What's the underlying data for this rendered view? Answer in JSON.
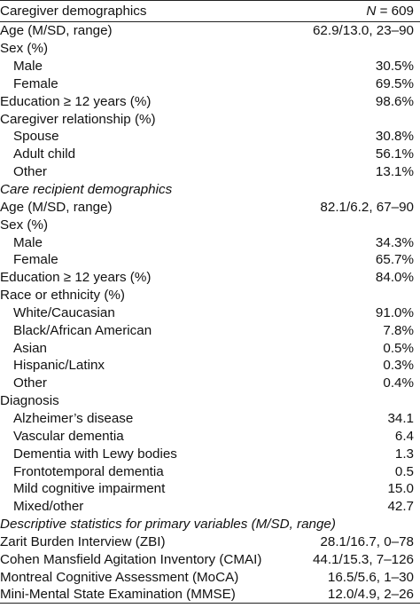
{
  "header": {
    "label": "Caregiver demographics",
    "n_label": "N",
    "n_value": " = 609"
  },
  "rows": [
    {
      "label": "Age (M/SD, range)",
      "value": "62.9/13.0, 23–90",
      "kind": "normal"
    },
    {
      "label": "Sex (%)",
      "value": "",
      "kind": "normal"
    },
    {
      "label": "Male",
      "value": "30.5%",
      "kind": "indent"
    },
    {
      "label": "Female",
      "value": "69.5%",
      "kind": "indent"
    },
    {
      "label": "Education ≥ 12 years (%)",
      "value": "98.6%",
      "kind": "normal"
    },
    {
      "label": "Caregiver relationship (%)",
      "value": "",
      "kind": "normal"
    },
    {
      "label": "Spouse",
      "value": "30.8%",
      "kind": "indent"
    },
    {
      "label": "Adult child",
      "value": "56.1%",
      "kind": "indent"
    },
    {
      "label": "Other",
      "value": "13.1%",
      "kind": "indent"
    },
    {
      "label": "Care recipient demographics",
      "value": "",
      "kind": "section"
    },
    {
      "label": "Age (M/SD, range)",
      "value": "82.1/6.2, 67–90",
      "kind": "normal"
    },
    {
      "label": "Sex (%)",
      "value": "",
      "kind": "normal"
    },
    {
      "label": "Male",
      "value": "34.3%",
      "kind": "indent"
    },
    {
      "label": "Female",
      "value": "65.7%",
      "kind": "indent"
    },
    {
      "label": "Education ≥ 12 years (%)",
      "value": "84.0%",
      "kind": "normal"
    },
    {
      "label": "Race or ethnicity (%)",
      "value": "",
      "kind": "normal"
    },
    {
      "label": "White/Caucasian",
      "value": "91.0%",
      "kind": "indent"
    },
    {
      "label": "Black/African American",
      "value": "7.8%",
      "kind": "indent"
    },
    {
      "label": "Asian",
      "value": "0.5%",
      "kind": "indent"
    },
    {
      "label": "Hispanic/Latinx",
      "value": "0.3%",
      "kind": "indent"
    },
    {
      "label": "Other",
      "value": "0.4%",
      "kind": "indent"
    },
    {
      "label": "Diagnosis",
      "value": "",
      "kind": "normal"
    },
    {
      "label": "Alzheimer’s disease",
      "value": "34.1",
      "kind": "indent"
    },
    {
      "label": "Vascular dementia",
      "value": "6.4",
      "kind": "indent"
    },
    {
      "label": "Dementia with Lewy bodies",
      "value": "1.3",
      "kind": "indent"
    },
    {
      "label": "Frontotemporal dementia",
      "value": "0.5",
      "kind": "indent"
    },
    {
      "label": "Mild cognitive impairment",
      "value": "15.0",
      "kind": "indent"
    },
    {
      "label": "Mixed/other",
      "value": "42.7",
      "kind": "indent"
    },
    {
      "label": "Descriptive statistics for primary variables (M/SD, range)",
      "value": "",
      "kind": "section"
    },
    {
      "label": "Zarit Burden Interview (ZBI)",
      "value": "28.1/16.7, 0–78",
      "kind": "normal"
    },
    {
      "label": "Cohen Mansfield Agitation Inventory (CMAI)",
      "value": "44.1/15.3, 7–126",
      "kind": "normal"
    },
    {
      "label": "Montreal Cognitive Assessment (MoCA)",
      "value": "16.5/5.6, 1–30",
      "kind": "normal"
    },
    {
      "label": "Mini-Mental State Examination (MMSE)",
      "value": "12.0/4.9, 2–26",
      "kind": "normal"
    }
  ]
}
